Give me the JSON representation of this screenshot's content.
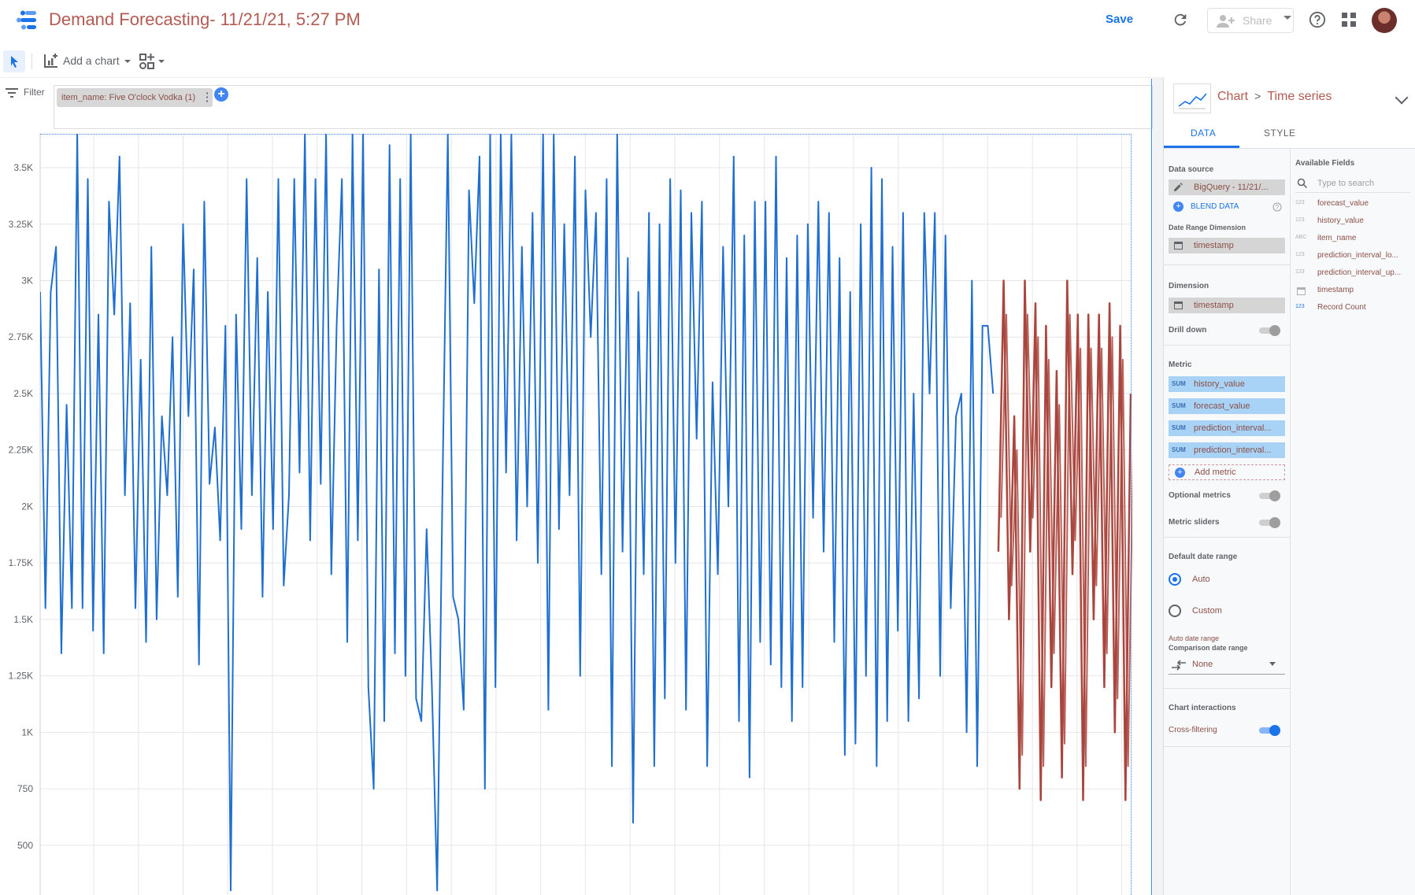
{
  "header": {
    "title": "Demand Forecasting- 11/21/21, 5:27 PM",
    "save_label": "Save",
    "share_label": "Share"
  },
  "toolbar": {
    "add_chart_label": "Add a chart"
  },
  "filter": {
    "label": "Filter",
    "chip": "item_name: Five O'clock Vodka  (1)"
  },
  "panel": {
    "crumb_chart": "Chart",
    "crumb_type": "Time series",
    "tabs": [
      "DATA",
      "STYLE"
    ],
    "data_source_label": "Data source",
    "data_source_value": "BigQuery - 11/21/...",
    "blend_label": "BLEND DATA",
    "date_range_dimension_label": "Date Range Dimension",
    "date_range_dimension_value": "timestamp",
    "dimension_label": "Dimension",
    "dimension_value": "timestamp",
    "drill_down_label": "Drill down",
    "metric_label": "Metric",
    "metrics": [
      {
        "agg": "SUM",
        "name": "history_value"
      },
      {
        "agg": "SUM",
        "name": "forecast_value"
      },
      {
        "agg": "SUM",
        "name": "prediction_interval..."
      },
      {
        "agg": "SUM",
        "name": "prediction_interval..."
      }
    ],
    "add_metric_label": "Add metric",
    "optional_metrics_label": "Optional metrics",
    "metric_sliders_label": "Metric sliders",
    "default_date_range_label": "Default date range",
    "auto_label": "Auto",
    "custom_label": "Custom",
    "auto_date_range_label": "Auto date range",
    "comparison_label": "Comparison date range",
    "comparison_value": "None",
    "chart_interactions_label": "Chart interactions",
    "cross_filtering_label": "Cross-filtering",
    "available_fields_label": "Available Fields",
    "search_placeholder": "Type to search",
    "fields": [
      {
        "type": "123",
        "name": "forecast_value"
      },
      {
        "type": "123",
        "name": "history_value"
      },
      {
        "type": "ABC",
        "name": "item_name"
      },
      {
        "type": "123",
        "name": "prediction_interval_lo..."
      },
      {
        "type": "123",
        "name": "prediction_interval_up..."
      },
      {
        "type": "date",
        "name": "timestamp"
      },
      {
        "type": "123",
        "name": "Record Count"
      }
    ]
  },
  "colors": {
    "history": "#1f6fd1",
    "forecast": "#a9453c",
    "accent": "#1a73e8"
  },
  "chart_data": {
    "type": "line",
    "y_ticks": [
      "3.5K",
      "3.25K",
      "3K",
      "2.75K",
      "2.5K",
      "2.25K",
      "2K",
      "1.75K",
      "1.5K",
      "1.25K",
      "1K",
      "750",
      "500"
    ],
    "ylim": [
      280,
      3650
    ],
    "grid": true,
    "series": [
      {
        "color": "#1f6fd1",
        "values": [
          2950,
          1550,
          2950,
          3150,
          1350,
          2450,
          1550,
          3650,
          1550,
          3450,
          1450,
          2850,
          1350,
          3350,
          2850,
          3550,
          2050,
          2900,
          1550,
          2650,
          1400,
          3150,
          1500,
          2400,
          2050,
          2750,
          1600,
          3250,
          2400,
          3050,
          1300,
          3350,
          2100,
          2350,
          1850,
          2800,
          300,
          2850,
          1900,
          3450,
          2050,
          3100,
          1600,
          2950,
          1900,
          3450,
          1650,
          2050,
          3450,
          2150,
          3650,
          1850,
          3450,
          2100,
          3650,
          1700,
          2800,
          3450,
          1400,
          3650,
          1850,
          3650,
          1200,
          750,
          3050,
          1050,
          3600,
          1350,
          3450,
          1250,
          3650,
          1150,
          1050,
          1900,
          1200,
          300,
          2100,
          3650,
          1600,
          1500,
          1100,
          3400,
          2900,
          3550,
          750,
          3650,
          1200,
          3650,
          2150,
          3650,
          1850,
          3150,
          2000,
          3300,
          1750,
          3650,
          1100,
          3650,
          1900,
          3250,
          2050,
          3550,
          1250,
          3400,
          2750,
          3300,
          1700,
          3450,
          850,
          3650,
          1800,
          3100,
          600,
          2950,
          1700,
          3300,
          850,
          3250,
          1150,
          3450,
          1750,
          3400,
          1100,
          3300,
          2300,
          3350,
          850,
          2550,
          1700,
          3150,
          2000,
          3550,
          1050,
          3200,
          800,
          3350,
          1400,
          3350,
          1300,
          3550,
          1200,
          3100,
          1050,
          3200,
          1200,
          3250,
          1950,
          3350,
          1800,
          3300,
          1400,
          3100,
          900,
          2950,
          950,
          3250,
          1250,
          3500,
          850,
          3450,
          1050,
          3150,
          1450,
          3300,
          1050,
          2500,
          1150,
          3300,
          2500,
          3300,
          1250,
          3200,
          1550,
          2400,
          2500,
          1000,
          3000,
          850,
          2800,
          2800,
          2500
        ]
      },
      {
        "color": "#a9453c",
        "values": [
          1800,
          3000,
          1500,
          2400,
          750,
          3000,
          1800,
          2900,
          700,
          2800,
          1200,
          2600,
          800,
          3000,
          1700,
          2850,
          700,
          2850,
          1500,
          2850,
          1200,
          2900,
          1000,
          2800,
          700,
          2500
        ]
      }
    ]
  }
}
